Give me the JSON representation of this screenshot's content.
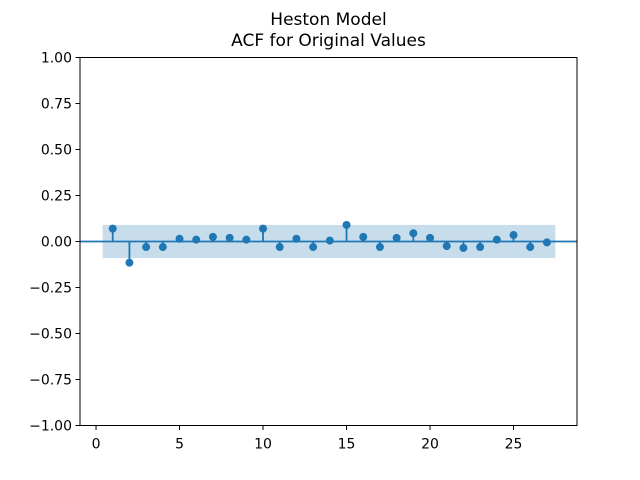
{
  "chart_data": {
    "type": "scatter",
    "plot_style": "stem-acf",
    "title": "Heston Model\nACF for Original Values",
    "title_lines": [
      "Heston Model",
      "ACF for Original Values"
    ],
    "xlabel": "",
    "ylabel": "",
    "xlim": [
      -0.96,
      28.8
    ],
    "ylim": [
      -1.0,
      1.0
    ],
    "grid": false,
    "legend": null,
    "x_ticks": {
      "values": [
        0,
        5,
        10,
        15,
        20,
        25
      ],
      "labels": [
        "0",
        "5",
        "10",
        "15",
        "20",
        "25"
      ]
    },
    "y_ticks": {
      "values": [
        1.0,
        0.75,
        0.5,
        0.25,
        0.0,
        -0.25,
        -0.5,
        -0.75,
        -1.0
      ],
      "labels": [
        "1.00",
        "0.75",
        "0.50",
        "0.25",
        "0.00",
        "−0.25",
        "−0.50",
        "−0.75",
        "−1.00"
      ]
    },
    "x": [
      1,
      2,
      3,
      4,
      5,
      6,
      7,
      8,
      9,
      10,
      11,
      12,
      13,
      14,
      15,
      16,
      17,
      18,
      19,
      20,
      21,
      22,
      23,
      24,
      25,
      26,
      27
    ],
    "y": [
      0.07,
      -0.115,
      -0.03,
      -0.03,
      0.015,
      0.01,
      0.025,
      0.02,
      0.01,
      0.07,
      -0.03,
      0.015,
      -0.03,
      0.005,
      0.09,
      0.025,
      -0.03,
      0.02,
      0.045,
      0.02,
      -0.025,
      -0.035,
      -0.03,
      0.01,
      0.035,
      -0.03,
      -0.005
    ],
    "zero_line": 0.0,
    "confidence_band": {
      "low": -0.09,
      "high": 0.09,
      "x_start": 0.4,
      "x_end": 27.5
    },
    "colors": {
      "stem": "#1f77b4",
      "marker": "#1f77b4",
      "zero_line": "#1f77b4",
      "band": "#1f77b4",
      "band_opacity": 0.25,
      "axis": "#000000",
      "background": "#ffffff"
    }
  }
}
